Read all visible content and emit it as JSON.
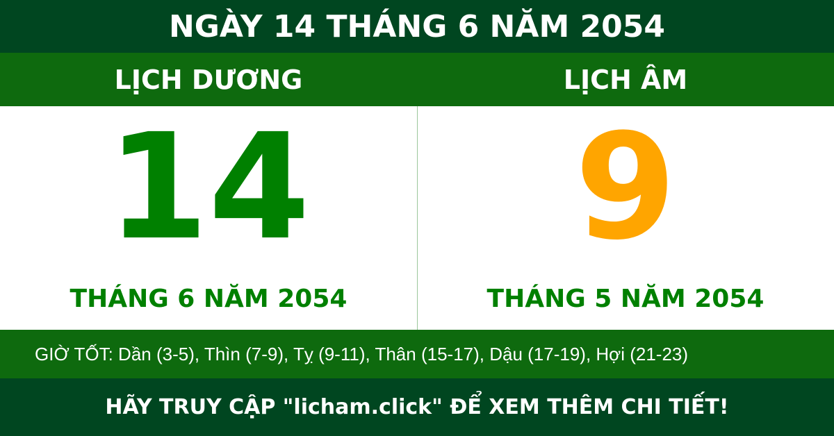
{
  "title": "NGÀY 14 THÁNG 6 NĂM 2054",
  "solar": {
    "heading": "LỊCH DƯƠNG",
    "day": "14",
    "month_year": "THÁNG 6 NĂM 2054"
  },
  "lunar": {
    "heading": "LỊCH ÂM",
    "day": "9",
    "month_year": "THÁNG 5 NĂM 2054"
  },
  "good_hours": "GIỜ TỐT: Dần (3-5), Thìn (7-9), Tỵ (9-11), Thân (15-17), Dậu (17-19), Hợi (21-23)",
  "footer": "HÃY TRUY CẬP \"licham.click\" ĐỂ XEM THÊM CHI TIẾT!",
  "colors": {
    "dark_green": "#004620",
    "green": "#0e6a0e",
    "solar_number": "#008000",
    "lunar_number": "#ffa500"
  }
}
